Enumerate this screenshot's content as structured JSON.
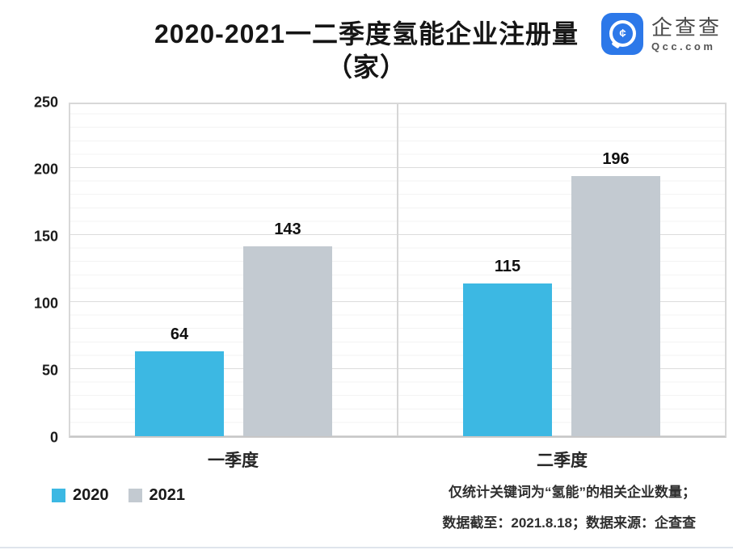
{
  "header": {
    "title_line1": "2020-2021一二季度氢能企业注册量",
    "title_line2": "（家）",
    "logo": {
      "name": "企查查",
      "domain": "Qcc.com",
      "brand_color": "#2C78E9",
      "icon": "qcc-magnifier-icon",
      "icon_glyph": "¢"
    }
  },
  "chart_data": {
    "type": "bar",
    "title": "2020-2021一二季度氢能企业注册量（家）",
    "categories": [
      "一季度",
      "二季度"
    ],
    "series": [
      {
        "name": "2020",
        "color": "#3CB8E3",
        "values": [
          64,
          115
        ]
      },
      {
        "name": "2021",
        "color": "#C3CAD1",
        "values": [
          143,
          196
        ]
      }
    ],
    "ylim": [
      0,
      250
    ],
    "yticks": [
      0,
      50,
      100,
      150,
      200,
      250
    ],
    "grid": "horizontal, major every 50, minor every 10",
    "legend_position": "bottom-left"
  },
  "footer": {
    "note_line1": "仅统计关键词为“氢能”的相关企业数量；",
    "note_line2": "数据截至：2021.8.18；数据来源：企查查"
  }
}
